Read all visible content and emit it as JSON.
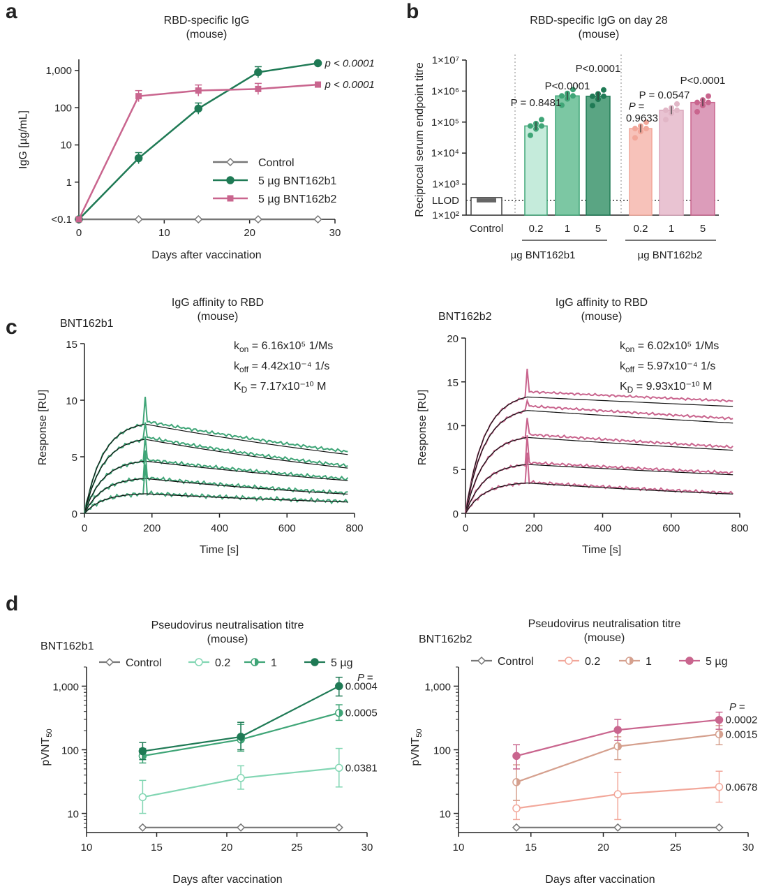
{
  "colors": {
    "control": "#777777",
    "b1_dark": "#1f7a55",
    "b1_mid": "#3fa577",
    "b1_light": "#82d6b3",
    "b2_dark": "#c9658e",
    "b2_mid": "#d5a08e",
    "b2_light": "#f2a79a",
    "b1_bar_light": "#c5ebdb",
    "b1_bar_mid": "#7cc7a3",
    "b1_bar_dark": "#5aa583",
    "b2_bar_light": "#f7c2ba",
    "b2_bar_mid": "#e9c3d2",
    "b2_bar_dark": "#dc9cba",
    "fit": "#111111"
  },
  "panel_labels": [
    "a",
    "b",
    "c",
    "d"
  ],
  "chart_data": [
    {
      "id": "a",
      "type": "line",
      "title": "RBD-specific IgG",
      "subtitle": "(mouse)",
      "xlabel": "Days after vaccination",
      "ylabel": "IgG [µg/mL]",
      "yscale": "log",
      "xlim": [
        0,
        30
      ],
      "ylim": [
        0.1,
        2000
      ],
      "xticks": [
        "0",
        "10",
        "20",
        "30"
      ],
      "yticks": [
        "<0.1",
        "1",
        "10",
        "100",
        "1,000"
      ],
      "series": [
        {
          "name": "Control",
          "x": [
            0,
            7,
            14,
            21,
            28
          ],
          "values": [
            0.1,
            0.1,
            0.1,
            0.1,
            0.1
          ],
          "marker": "diamond-open",
          "annotation": ""
        },
        {
          "name": "5 µg BNT162b1",
          "x": [
            0,
            7,
            14,
            21,
            28
          ],
          "values": [
            0.1,
            4.4,
            95,
            900,
            1580
          ],
          "marker": "circle",
          "annotation": "p < 0.0001"
        },
        {
          "name": "5 µg BNT162b2",
          "x": [
            0,
            7,
            14,
            21,
            28
          ],
          "values": [
            0.1,
            205,
            290,
            320,
            420
          ],
          "marker": "square",
          "annotation": "p < 0.0001"
        }
      ]
    },
    {
      "id": "b",
      "type": "bar",
      "title": "RBD-specific IgG on day 28",
      "subtitle": "(mouse)",
      "ylabel": "Reciprocal serum endpoint titre",
      "yscale": "log",
      "ylim": [
        100,
        10000000
      ],
      "yticks": [
        "1×10²",
        "1×10³",
        "1×10⁴",
        "1×10⁵",
        "1×10⁶",
        "1×10⁷"
      ],
      "llod_label": "LLOD",
      "llod": 300,
      "categories": [
        "Control",
        "0.2",
        "1",
        "5",
        "0.2",
        "1",
        "5"
      ],
      "group_labels": [
        "µg BNT162b1",
        "µg BNT162b2"
      ],
      "values": [
        300,
        75000,
        700000,
        680000,
        62000,
        240000,
        430000
      ],
      "p_values": [
        "",
        "P = 0.8481",
        "P<0.0001",
        "P<0.0001",
        "P = 0.9633",
        "P = 0.0547",
        "P<0.0001"
      ],
      "p_prefix": "P =",
      "p_value_b2_low": "0.9633"
    },
    {
      "id": "c1",
      "type": "line",
      "title": "IgG affinity to RBD",
      "subtitle": "(mouse)",
      "construct": "BNT162b1",
      "xlabel": "Time [s]",
      "ylabel": "Response [RU]",
      "xlim": [
        0,
        800
      ],
      "ylim": [
        0,
        15
      ],
      "xticks": [
        "0",
        "200",
        "400",
        "600",
        "800"
      ],
      "yticks": [
        "0",
        "5",
        "10",
        "15"
      ],
      "kinetics": {
        "kon": "6.16x10⁵ 1/Ms",
        "koff": "4.42x10⁻⁴ 1/s",
        "KD": "7.17x10⁻¹⁰ M"
      },
      "curve_plateaus": [
        8.2,
        6.8,
        4.8,
        3.2,
        1.8
      ],
      "curve_ends": [
        5.2,
        4.0,
        2.9,
        1.7,
        1.0
      ],
      "peak": 10.3
    },
    {
      "id": "c2",
      "type": "line",
      "title": "IgG affinity to RBD",
      "subtitle": "(mouse)",
      "construct": "BNT162b2",
      "xlabel": "Time [s]",
      "ylabel": "Response [RU]",
      "xlim": [
        0,
        800
      ],
      "ylim": [
        0,
        20
      ],
      "xticks": [
        "0",
        "200",
        "400",
        "600",
        "800"
      ],
      "yticks": [
        "0",
        "5",
        "10",
        "15",
        "20"
      ],
      "kinetics": {
        "kon": "6.02x10⁵ 1/Ms",
        "koff": "5.97x10⁻⁴ 1/s",
        "KD": "9.93x10⁻¹⁰ M"
      },
      "curve_plateaus": [
        13.8,
        12.2,
        9.0,
        5.8,
        3.6
      ],
      "curve_ends": [
        12.2,
        10.3,
        7.2,
        4.4,
        2.2
      ],
      "peak": 16.5
    },
    {
      "id": "d1",
      "type": "line",
      "title": "Pseudovirus neutralisation titre",
      "subtitle": "(mouse)",
      "construct": "BNT162b1",
      "xlabel": "Days after vaccination",
      "ylabel": "pVNT",
      "ylabel_sub": "50",
      "yscale": "log",
      "xlim": [
        10,
        30
      ],
      "ylim": [
        5,
        2000
      ],
      "xticks": [
        "10",
        "15",
        "20",
        "25",
        "30"
      ],
      "yticks": [
        "10",
        "100",
        "1,000"
      ],
      "p_header": "P =",
      "legend": [
        "Control",
        "0.2",
        "1",
        "5 µg"
      ],
      "series": [
        {
          "name": "Control",
          "x": [
            14,
            21,
            28
          ],
          "values": [
            6,
            6,
            6
          ],
          "marker": "diamond-open",
          "annotation": ""
        },
        {
          "name": "0.2",
          "x": [
            14,
            21,
            28
          ],
          "values": [
            18,
            36,
            52
          ],
          "err": [
            [
              10,
              33
            ],
            [
              24,
              56
            ],
            [
              26,
              105
            ]
          ],
          "marker": "circle-open",
          "annotation": "0.0381"
        },
        {
          "name": "1",
          "x": [
            14,
            21,
            28
          ],
          "values": [
            80,
            145,
            380
          ],
          "err": [
            [
              62,
              105
            ],
            [
              95,
              250
            ],
            [
              290,
              510
            ]
          ],
          "marker": "circle-half",
          "annotation": "0.0005"
        },
        {
          "name": "5 µg",
          "x": [
            14,
            21,
            28
          ],
          "values": [
            95,
            160,
            1000
          ],
          "err": [
            [
              70,
              130
            ],
            [
              100,
              270
            ],
            [
              700,
              1380
            ]
          ],
          "marker": "circle",
          "annotation": "0.0004"
        }
      ]
    },
    {
      "id": "d2",
      "type": "line",
      "title": "Pseudovirus neutralisation titre",
      "subtitle": "(mouse)",
      "construct": "BNT162b2",
      "xlabel": "Days after vaccination",
      "ylabel": "pVNT",
      "ylabel_sub": "50",
      "yscale": "log",
      "xlim": [
        10,
        30
      ],
      "ylim": [
        5,
        2000
      ],
      "xticks": [
        "10",
        "15",
        "20",
        "25",
        "30"
      ],
      "yticks": [
        "10",
        "100",
        "1,000"
      ],
      "p_header": "P =",
      "legend": [
        "Control",
        "0.2",
        "1",
        "5 µg"
      ],
      "series": [
        {
          "name": "Control",
          "x": [
            14,
            21,
            28
          ],
          "values": [
            6,
            6,
            6
          ],
          "marker": "diamond-open",
          "annotation": ""
        },
        {
          "name": "0.2",
          "x": [
            14,
            21,
            28
          ],
          "values": [
            12,
            20,
            26
          ],
          "err": [
            [
              8,
              16
            ],
            [
              8,
              44
            ],
            [
              15,
              46
            ]
          ],
          "marker": "circle-open",
          "annotation": "0.0678"
        },
        {
          "name": "1",
          "x": [
            14,
            21,
            28
          ],
          "values": [
            31,
            113,
            175
          ],
          "err": [
            [
              16,
              58
            ],
            [
              70,
              160
            ],
            [
              120,
              240
            ]
          ],
          "marker": "circle-half",
          "annotation": "0.0015"
        },
        {
          "name": "5 µg",
          "x": [
            14,
            21,
            28
          ],
          "values": [
            80,
            205,
            295
          ],
          "err": [
            [
              50,
              120
            ],
            [
              140,
              300
            ],
            [
              210,
              390
            ]
          ],
          "marker": "circle",
          "annotation": "0.0002"
        }
      ]
    }
  ]
}
